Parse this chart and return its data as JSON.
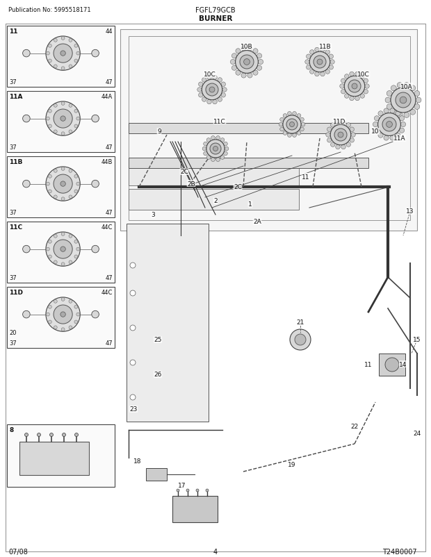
{
  "title_left": "Publication No: 5995518171",
  "title_center": "FGFL79GCB",
  "title_sub": "BURNER",
  "footer_left": "07/08",
  "footer_center": "4",
  "footer_right": "T24B0007",
  "bg_color": "#ffffff",
  "border_color": "#555555",
  "text_color": "#111111",
  "figsize": [
    6.2,
    8.03
  ],
  "dpi": 100
}
